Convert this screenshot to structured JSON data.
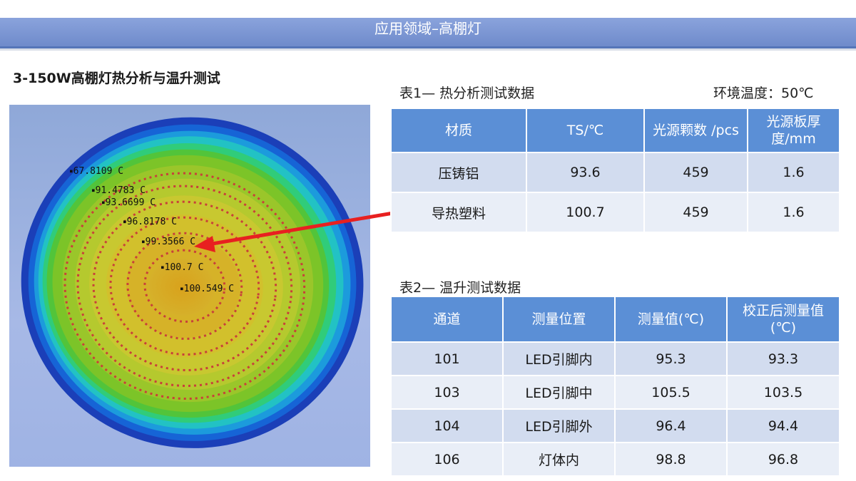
{
  "header": {
    "title": "应用领域–高棚灯"
  },
  "main_title": "3-150W高棚灯热分析与温升测试",
  "thermal_image": {
    "labels": [
      "67.8109 C",
      "91.4783 C",
      "93.6699 C",
      "96.8178 C",
      "99.3566 C",
      "100.7 C",
      "100.549 C"
    ]
  },
  "table1": {
    "caption": "表1— 热分析测试数据",
    "env_temp": "环境温度：50℃",
    "headers": [
      "材质",
      "TS/℃",
      "光源颗数 /pcs",
      "光源板厚度/mm"
    ],
    "rows": [
      [
        "压铸铝",
        "93.6",
        "459",
        "1.6"
      ],
      [
        "导热塑料",
        "100.7",
        "459",
        "1.6"
      ]
    ]
  },
  "table2": {
    "caption": "表2— 温升测试数据",
    "headers": [
      "通道",
      "测量位置",
      "测量值(℃)",
      "校正后测量值(℃)"
    ],
    "rows": [
      [
        "101",
        "LED引脚内",
        "95.3",
        "93.3"
      ],
      [
        "103",
        "LED引脚中",
        "105.5",
        "103.5"
      ],
      [
        "104",
        "LED引脚外",
        "96.4",
        "94.4"
      ],
      [
        "106",
        "灯体内",
        "98.8",
        "96.8"
      ]
    ]
  }
}
